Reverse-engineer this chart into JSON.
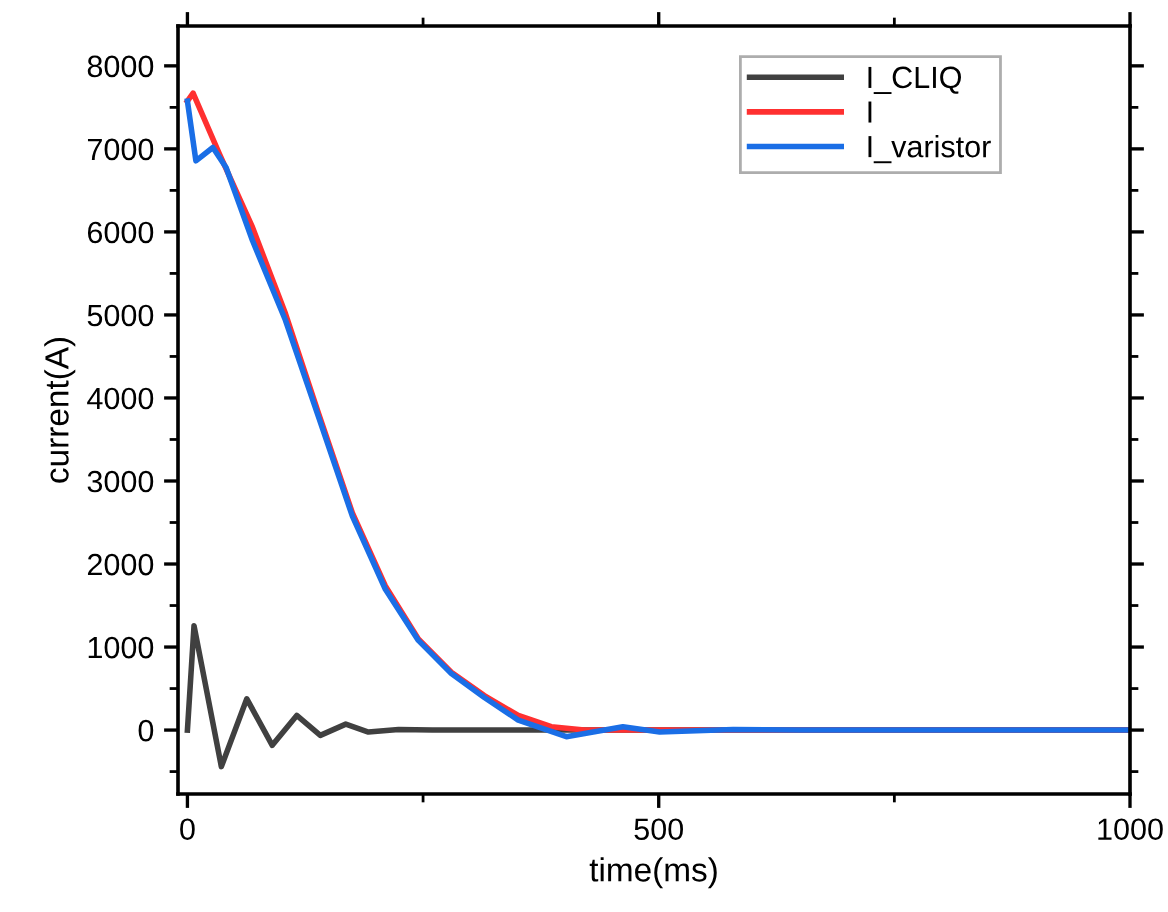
{
  "chart_data": {
    "type": "line",
    "xlabel": "time(ms)",
    "ylabel": "current(A)",
    "xlim": [
      -10,
      1000
    ],
    "xticks": [
      0,
      500,
      1000
    ],
    "ylim": [
      -770,
      8480
    ],
    "yticks": [
      0,
      1000,
      2000,
      3000,
      4000,
      5000,
      6000,
      7000,
      8000
    ],
    "grid": false,
    "legend": "top right",
    "line_style": "solid",
    "marker": "none",
    "series": [
      {
        "name": "I_CLIQ",
        "color": "#404040",
        "x": [
          0,
          7,
          36,
          63,
          90,
          116,
          141,
          168,
          192,
          224,
          260,
          400,
          1000
        ],
        "values": [
          0,
          1256,
          -440,
          376,
          -184,
          176,
          -64,
          72,
          -24,
          8,
          0,
          0,
          0
        ]
      },
      {
        "name": "I",
        "color": "#ff3030",
        "x": [
          0,
          6,
          34,
          69,
          104,
          139,
          175,
          210,
          245,
          280,
          315,
          351,
          386,
          421,
          500,
          1000
        ],
        "values": [
          7576,
          7672,
          6936,
          6056,
          5016,
          3816,
          2616,
          1736,
          1096,
          696,
          416,
          176,
          40,
          0,
          0,
          0
        ]
      },
      {
        "name": "I_varistor",
        "color": "#1a6ee6",
        "x": [
          0,
          9,
          27,
          41,
          69,
          104,
          139,
          175,
          210,
          245,
          280,
          315,
          351,
          402,
          462,
          501,
          579,
          650,
          1000
        ],
        "values": [
          7576,
          6856,
          7016,
          6776,
          5896,
          4936,
          3776,
          2576,
          1696,
          1080,
          680,
          392,
          120,
          -80,
          40,
          -24,
          8,
          0,
          0
        ]
      }
    ]
  }
}
